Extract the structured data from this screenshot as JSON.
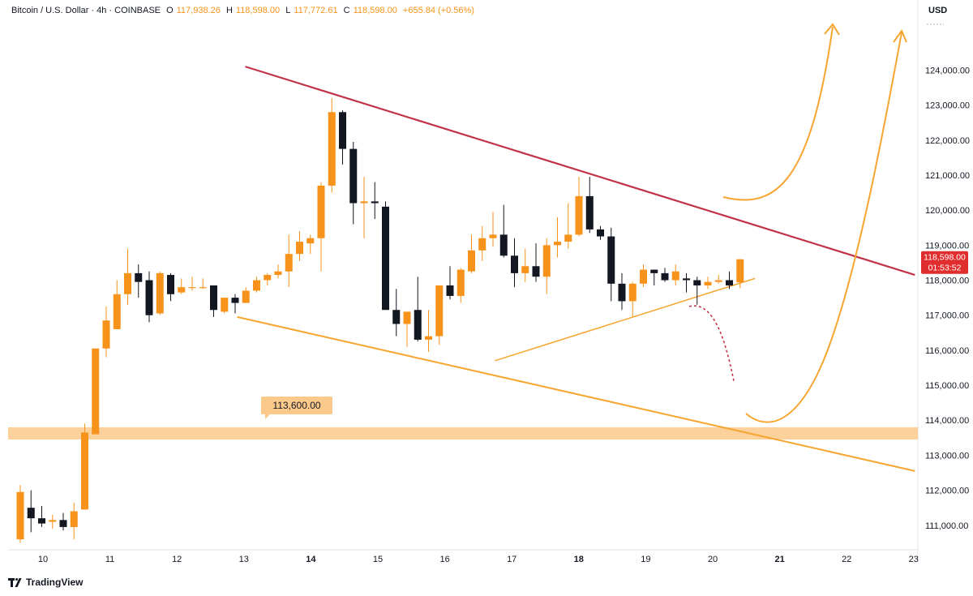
{
  "header": {
    "symbol": "Bitcoin / U.S. Dollar · 4h · COINBASE",
    "open_label": "O",
    "open": "117,938.26",
    "high_label": "H",
    "high": "118,598.00",
    "low_label": "L",
    "low": "117,772.61",
    "close_label": "C",
    "close": "118,598.00",
    "change": "+655.84 (+0.56%)"
  },
  "currency": "USD",
  "footer": {
    "brand": "TradingView"
  },
  "colors": {
    "up": "#f7931a",
    "down": "#131722",
    "resistance": "#c2334a",
    "support": "#f7a531",
    "zone": "#fbc98a",
    "price_tag": "#e02d2d"
  },
  "chart_data": {
    "type": "candlestick",
    "price_axis": {
      "range": [
        110300,
        125400
      ],
      "ticks": [
        "124,000.00",
        "123,000.00",
        "122,000.00",
        "121,000.00",
        "120,000.00",
        "119,000.00",
        "118,000.00",
        "117,000.00",
        "116,000.00",
        "115,000.00",
        "114,000.00",
        "113,000.00",
        "112,000.00",
        "111,000.00"
      ]
    },
    "time_axis": {
      "ticks": [
        {
          "label": "10",
          "bold": false
        },
        {
          "label": "11",
          "bold": false
        },
        {
          "label": "12",
          "bold": false
        },
        {
          "label": "13",
          "bold": false
        },
        {
          "label": "14",
          "bold": true
        },
        {
          "label": "15",
          "bold": false
        },
        {
          "label": "16",
          "bold": false
        },
        {
          "label": "17",
          "bold": false
        },
        {
          "label": "18",
          "bold": true
        },
        {
          "label": "19",
          "bold": false
        },
        {
          "label": "20",
          "bold": false
        },
        {
          "label": "21",
          "bold": true
        },
        {
          "label": "22",
          "bold": false
        },
        {
          "label": "23",
          "bold": false
        }
      ]
    },
    "candles": [
      {
        "o": 110600,
        "h": 112150,
        "l": 110500,
        "c": 111950
      },
      {
        "o": 111500,
        "h": 112000,
        "l": 110800,
        "c": 111200
      },
      {
        "o": 111200,
        "h": 111550,
        "l": 110950,
        "c": 111050
      },
      {
        "o": 111100,
        "h": 111300,
        "l": 110900,
        "c": 111150
      },
      {
        "o": 111150,
        "h": 111350,
        "l": 110850,
        "c": 110950
      },
      {
        "o": 110950,
        "h": 111650,
        "l": 110600,
        "c": 111400
      },
      {
        "o": 111450,
        "h": 113900,
        "l": 111450,
        "c": 113650
      },
      {
        "o": 113600,
        "h": 116050,
        "l": 113600,
        "c": 116050
      },
      {
        "o": 116050,
        "h": 117250,
        "l": 115800,
        "c": 116850
      },
      {
        "o": 116600,
        "h": 118000,
        "l": 116600,
        "c": 117600
      },
      {
        "o": 117600,
        "h": 118900,
        "l": 117300,
        "c": 118200
      },
      {
        "o": 118200,
        "h": 118450,
        "l": 117500,
        "c": 117950
      },
      {
        "o": 118000,
        "h": 118250,
        "l": 116800,
        "c": 117000
      },
      {
        "o": 117050,
        "h": 118250,
        "l": 117000,
        "c": 118200
      },
      {
        "o": 118150,
        "h": 118200,
        "l": 117400,
        "c": 117600
      },
      {
        "o": 117650,
        "h": 118050,
        "l": 117600,
        "c": 117800
      },
      {
        "o": 117800,
        "h": 118100,
        "l": 117700,
        "c": 117800
      },
      {
        "o": 117800,
        "h": 118050,
        "l": 117750,
        "c": 117800
      },
      {
        "o": 117850,
        "h": 117850,
        "l": 116950,
        "c": 117150
      },
      {
        "o": 117100,
        "h": 117500,
        "l": 117050,
        "c": 117500
      },
      {
        "o": 117500,
        "h": 117600,
        "l": 117050,
        "c": 117350
      },
      {
        "o": 117350,
        "h": 117800,
        "l": 117350,
        "c": 117700
      },
      {
        "o": 117700,
        "h": 118100,
        "l": 117650,
        "c": 118000
      },
      {
        "o": 118000,
        "h": 118200,
        "l": 117850,
        "c": 118150
      },
      {
        "o": 118150,
        "h": 118450,
        "l": 118050,
        "c": 118250
      },
      {
        "o": 118250,
        "h": 119300,
        "l": 117800,
        "c": 118750
      },
      {
        "o": 118750,
        "h": 119400,
        "l": 118550,
        "c": 119100
      },
      {
        "o": 119050,
        "h": 119300,
        "l": 118750,
        "c": 119200
      },
      {
        "o": 119200,
        "h": 120800,
        "l": 118250,
        "c": 120700
      },
      {
        "o": 120700,
        "h": 123200,
        "l": 120500,
        "c": 122800
      },
      {
        "o": 122800,
        "h": 122850,
        "l": 121300,
        "c": 121750
      },
      {
        "o": 121750,
        "h": 121950,
        "l": 119600,
        "c": 120200
      },
      {
        "o": 120200,
        "h": 120950,
        "l": 119200,
        "c": 120250
      },
      {
        "o": 120250,
        "h": 120800,
        "l": 119750,
        "c": 120200
      },
      {
        "o": 120100,
        "h": 120250,
        "l": 117200,
        "c": 117150
      },
      {
        "o": 117150,
        "h": 117750,
        "l": 116400,
        "c": 116750
      },
      {
        "o": 116750,
        "h": 117100,
        "l": 116100,
        "c": 117100
      },
      {
        "o": 117150,
        "h": 118100,
        "l": 116250,
        "c": 116300
      },
      {
        "o": 116300,
        "h": 117150,
        "l": 115950,
        "c": 116400
      },
      {
        "o": 116400,
        "h": 117850,
        "l": 116150,
        "c": 117850
      },
      {
        "o": 117850,
        "h": 118400,
        "l": 117450,
        "c": 117550
      },
      {
        "o": 117550,
        "h": 118350,
        "l": 117350,
        "c": 118300
      },
      {
        "o": 118250,
        "h": 119300,
        "l": 118200,
        "c": 118850
      },
      {
        "o": 118850,
        "h": 119550,
        "l": 118550,
        "c": 119200
      },
      {
        "o": 119200,
        "h": 119950,
        "l": 118950,
        "c": 119300
      },
      {
        "o": 119300,
        "h": 120150,
        "l": 118650,
        "c": 118700
      },
      {
        "o": 118700,
        "h": 119200,
        "l": 117800,
        "c": 118200
      },
      {
        "o": 118200,
        "h": 118900,
        "l": 117950,
        "c": 118400
      },
      {
        "o": 118400,
        "h": 119050,
        "l": 117950,
        "c": 118100
      },
      {
        "o": 118100,
        "h": 119200,
        "l": 117600,
        "c": 119000
      },
      {
        "o": 119000,
        "h": 119800,
        "l": 118650,
        "c": 119100
      },
      {
        "o": 119100,
        "h": 120200,
        "l": 118900,
        "c": 119300
      },
      {
        "o": 119300,
        "h": 120950,
        "l": 119250,
        "c": 120400
      },
      {
        "o": 120400,
        "h": 120950,
        "l": 119350,
        "c": 119450
      },
      {
        "o": 119450,
        "h": 119550,
        "l": 119150,
        "c": 119250
      },
      {
        "o": 119250,
        "h": 119500,
        "l": 117400,
        "c": 117900
      },
      {
        "o": 117900,
        "h": 118200,
        "l": 117150,
        "c": 117400
      },
      {
        "o": 117400,
        "h": 117950,
        "l": 116950,
        "c": 117900
      },
      {
        "o": 117900,
        "h": 118450,
        "l": 117800,
        "c": 118300
      },
      {
        "o": 118300,
        "h": 118300,
        "l": 117850,
        "c": 118200
      },
      {
        "o": 118200,
        "h": 118350,
        "l": 117950,
        "c": 118000
      },
      {
        "o": 118000,
        "h": 118450,
        "l": 117850,
        "c": 118250
      },
      {
        "o": 118050,
        "h": 118200,
        "l": 117650,
        "c": 118000
      },
      {
        "o": 118000,
        "h": 118100,
        "l": 117300,
        "c": 117850
      },
      {
        "o": 117850,
        "h": 118100,
        "l": 117750,
        "c": 117950
      },
      {
        "o": 117950,
        "h": 118150,
        "l": 117900,
        "c": 118000
      },
      {
        "o": 118000,
        "h": 118250,
        "l": 117750,
        "c": 117850
      },
      {
        "o": 117938.26,
        "h": 118598,
        "l": 117772.61,
        "c": 118598
      }
    ],
    "zone_label": "113,600.00",
    "zone_range": [
      113450,
      113800
    ],
    "last_price_label": "118,598.00",
    "countdown": "01:53:52",
    "trendlines": [
      {
        "name": "resistance",
        "from": {
          "candle": 14,
          "price": 124100
        },
        "to": {
          "candle": 71.5,
          "price": 118150
        }
      },
      {
        "name": "lower-support",
        "from": {
          "candle": 14,
          "price": 116950
        },
        "to": {
          "candle": 71.5,
          "price": 112550
        }
      },
      {
        "name": "inner-support",
        "from": {
          "candle": 38,
          "price": 115700
        },
        "to": {
          "candle": 64,
          "price": 118050
        }
      }
    ]
  }
}
